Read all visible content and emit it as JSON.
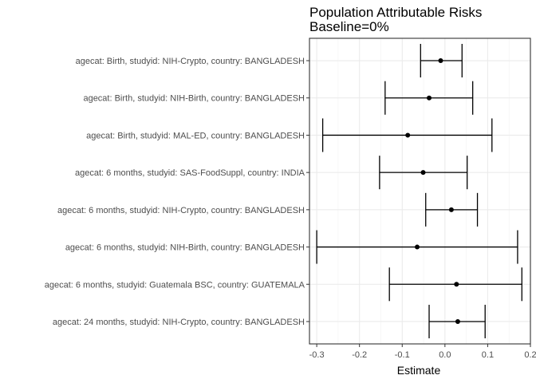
{
  "chart_data": {
    "type": "forest",
    "title": [
      "Population Attributable Risks",
      "Baseline=0%"
    ],
    "xlabel": "Estimate",
    "ylabel": "",
    "xlim": [
      -0.317,
      0.2
    ],
    "xticks": [
      -0.3,
      -0.2,
      -0.1,
      0.0,
      0.1,
      0.2
    ],
    "xtick_labels": [
      "-0.3",
      "-0.2",
      "-0.1",
      "0.0",
      "0.1",
      "0.2"
    ],
    "grid": true,
    "categories": [
      "agecat: Birth, studyid: NIH-Crypto, country: BANGLADESH",
      "agecat: Birth, studyid: NIH-Birth, country: BANGLADESH",
      "agecat: Birth, studyid: MAL-ED, country: BANGLADESH",
      "agecat: 6 months, studyid: SAS-FoodSuppl, country: INDIA",
      "agecat: 6 months, studyid: NIH-Crypto, country: BANGLADESH",
      "agecat: 6 months, studyid: NIH-Birth, country: BANGLADESH",
      "agecat: 6 months, studyid: Guatemala BSC, country: GUATEMALA",
      "agecat: 24 months, studyid: NIH-Crypto, country: BANGLADESH"
    ],
    "estimates": [
      -0.01,
      -0.037,
      -0.087,
      -0.051,
      0.015,
      -0.065,
      0.027,
      0.03
    ],
    "lower": [
      -0.057,
      -0.14,
      -0.286,
      -0.153,
      -0.045,
      -0.3,
      -0.13,
      -0.037
    ],
    "upper": [
      0.04,
      0.065,
      0.11,
      0.052,
      0.076,
      0.17,
      0.18,
      0.094
    ],
    "colors": {
      "background": "#ffffff",
      "panel_border": "#333333",
      "grid_major": "#ebebeb",
      "grid_minor": "#f2f2f2",
      "ink": "#000000"
    }
  }
}
